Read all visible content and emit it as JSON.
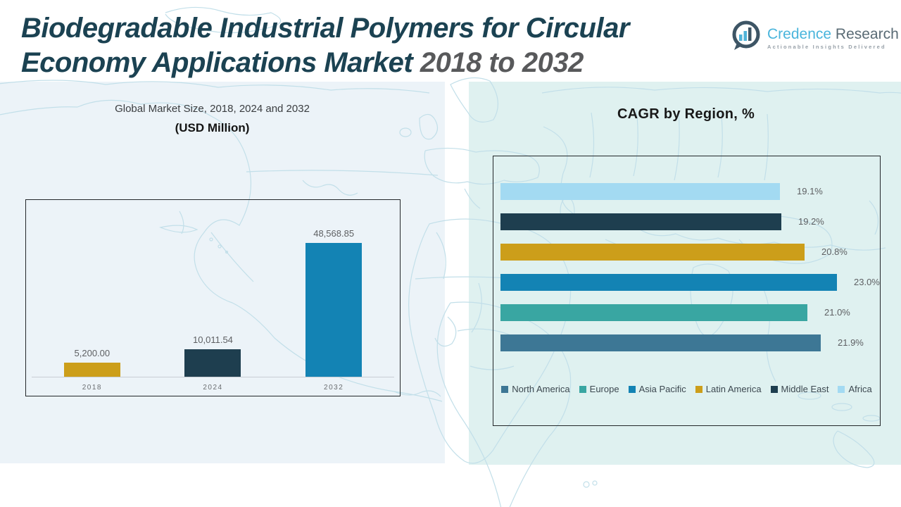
{
  "header": {
    "title": {
      "line1": "Biodegradable Industrial Polymers for Circular",
      "line2_main": "Economy Applications Market ",
      "line2_years": "2018 to 2032"
    },
    "logo": {
      "brand_primary": "Credence",
      "brand_secondary": " Research",
      "tagline": "Actionable Insights Delivered"
    }
  },
  "colors": {
    "title_teal": "#1B4252",
    "title_gray": "#58595B",
    "brand_blue": "#4AB5DC",
    "brand_slate": "#5A6B75",
    "gold": "#CC9E1A",
    "navy": "#1E3E4F",
    "blue": "#1383B4",
    "teal": "#39A6A2",
    "steel_blue": "#3D7795",
    "light_blue": "#A3DAF2",
    "panel_left_bg": "#ECF3F8",
    "panel_right_bg": "#DFF1F0",
    "map_line": "#C2DFE9"
  },
  "chart_data": [
    {
      "type": "bar",
      "title": "Global Market Size, 2018, 2024 and 2032",
      "subtitle": "(USD Million)",
      "categories": [
        "2018",
        "2024",
        "2032"
      ],
      "values": [
        5200.0,
        10011.54,
        48568.85
      ],
      "labels": [
        "5,200.00",
        "10,011.54",
        "48,568.85"
      ],
      "colors": [
        "#CC9E1A",
        "#1E3E4F",
        "#1383B4"
      ],
      "xlabel": "",
      "ylabel": "",
      "ylim": [
        0,
        48568.85
      ],
      "grid": false,
      "legend_position": "none"
    },
    {
      "type": "bar",
      "orientation": "horizontal",
      "title": "CAGR by Region, %",
      "categories": [
        "Africa",
        "Middle East",
        "Latin America",
        "Asia Pacific",
        "Europe",
        "North America"
      ],
      "values": [
        19.1,
        19.2,
        20.8,
        23.0,
        21.0,
        21.9
      ],
      "labels": [
        "19.1%",
        "19.2%",
        "20.8%",
        "23.0%",
        "21.0%",
        "21.9%"
      ],
      "colors": [
        "#A3DAF2",
        "#1E3E4F",
        "#CC9E1A",
        "#1383B4",
        "#39A6A2",
        "#3D7795"
      ],
      "xlabel": "",
      "ylabel": "",
      "xlim": [
        0,
        23.0
      ],
      "grid": false,
      "legend_position": "bottom",
      "legend": [
        {
          "label": "North America",
          "color": "#3D7795"
        },
        {
          "label": "Europe",
          "color": "#39A6A2"
        },
        {
          "label": "Asia Pacific",
          "color": "#1383B4"
        },
        {
          "label": "Latin America",
          "color": "#CC9E1A"
        },
        {
          "label": "Middle East",
          "color": "#1E3E4F"
        },
        {
          "label": "Africa",
          "color": "#A3DAF2"
        }
      ]
    }
  ]
}
